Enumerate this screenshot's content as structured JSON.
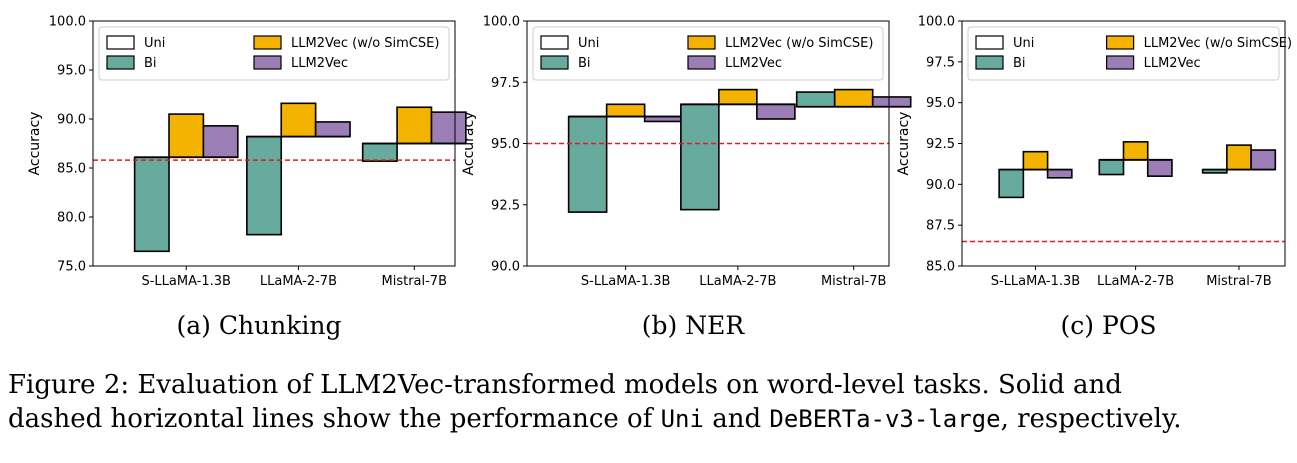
{
  "caption": {
    "line1": "Figure 2: Evaluation of LLM2Vec-transformed models on word-level tasks. Solid and",
    "line2_pre": "dashed horizontal lines show the performance of ",
    "line2_code1": "Uni",
    "line2_mid": " and ",
    "line2_code2": "DeBERTa-v3-large",
    "line2_post": ", respectively."
  },
  "colors": {
    "uni": "#ffffff",
    "bi": "#67ab9f",
    "llm2vec_wo_simcse": "#f5b301",
    "llm2vec": "#9b7eb5",
    "baseline": "#dd1c1c"
  },
  "chart_data": [
    {
      "type": "bar",
      "subcaption": "(a) Chunking",
      "ylabel": "Accuracy",
      "ylim": [
        75.0,
        100.0
      ],
      "yticks": [
        "75.0",
        "80.0",
        "85.0",
        "90.0",
        "95.0",
        "100.0"
      ],
      "categories": [
        "S-LLaMA-1.3B",
        "LLaMA-2-7B",
        "Mistral-7B"
      ],
      "baseline_dashed": 85.8,
      "legend": [
        "Uni",
        "Bi",
        "LLM2Vec (w/o SimCSE)",
        "LLM2Vec"
      ],
      "series": [
        {
          "name": "Uni",
          "values": [
            86.1,
            88.2,
            87.5
          ]
        },
        {
          "name": "Bi",
          "values": [
            76.5,
            78.2,
            85.7
          ]
        },
        {
          "name": "LLM2Vec (w/o SimCSE)",
          "values": [
            90.5,
            91.6,
            91.2
          ]
        },
        {
          "name": "LLM2Vec",
          "values": [
            89.3,
            89.7,
            90.7
          ]
        }
      ]
    },
    {
      "type": "bar",
      "subcaption": "(b) NER",
      "ylabel": "Accuracy",
      "ylim": [
        90.0,
        100.0
      ],
      "yticks": [
        "90.0",
        "92.5",
        "95.0",
        "97.5",
        "100.0"
      ],
      "categories": [
        "S-LLaMA-1.3B",
        "LLaMA-2-7B",
        "Mistral-7B"
      ],
      "baseline_dashed": 95.0,
      "legend": [
        "Uni",
        "Bi",
        "LLM2Vec (w/o SimCSE)",
        "LLM2Vec"
      ],
      "series": [
        {
          "name": "Uni",
          "values": [
            96.1,
            96.6,
            96.5
          ]
        },
        {
          "name": "Bi",
          "values": [
            92.2,
            92.3,
            97.1
          ]
        },
        {
          "name": "LLM2Vec (w/o SimCSE)",
          "values": [
            96.6,
            97.2,
            97.2
          ]
        },
        {
          "name": "LLM2Vec",
          "values": [
            95.9,
            96.0,
            96.9
          ]
        }
      ]
    },
    {
      "type": "bar",
      "subcaption": "(c) POS",
      "ylabel": "Accuracy",
      "ylim": [
        85.0,
        100.0
      ],
      "yticks": [
        "85.0",
        "87.5",
        "90.0",
        "92.5",
        "95.0",
        "97.5",
        "100.0"
      ],
      "categories": [
        "S-LLaMA-1.3B",
        "LLaMA-2-7B",
        "Mistral-7B"
      ],
      "baseline_dashed": 86.5,
      "legend": [
        "Uni",
        "Bi",
        "LLM2Vec (w/o SimCSE)",
        "LLM2Vec"
      ],
      "series": [
        {
          "name": "Uni",
          "values": [
            90.9,
            91.5,
            90.9
          ]
        },
        {
          "name": "Bi",
          "values": [
            89.2,
            90.6,
            90.7
          ]
        },
        {
          "name": "LLM2Vec (w/o SimCSE)",
          "values": [
            92.0,
            92.6,
            92.4
          ]
        },
        {
          "name": "LLM2Vec",
          "values": [
            90.4,
            90.5,
            92.1
          ]
        }
      ]
    }
  ]
}
